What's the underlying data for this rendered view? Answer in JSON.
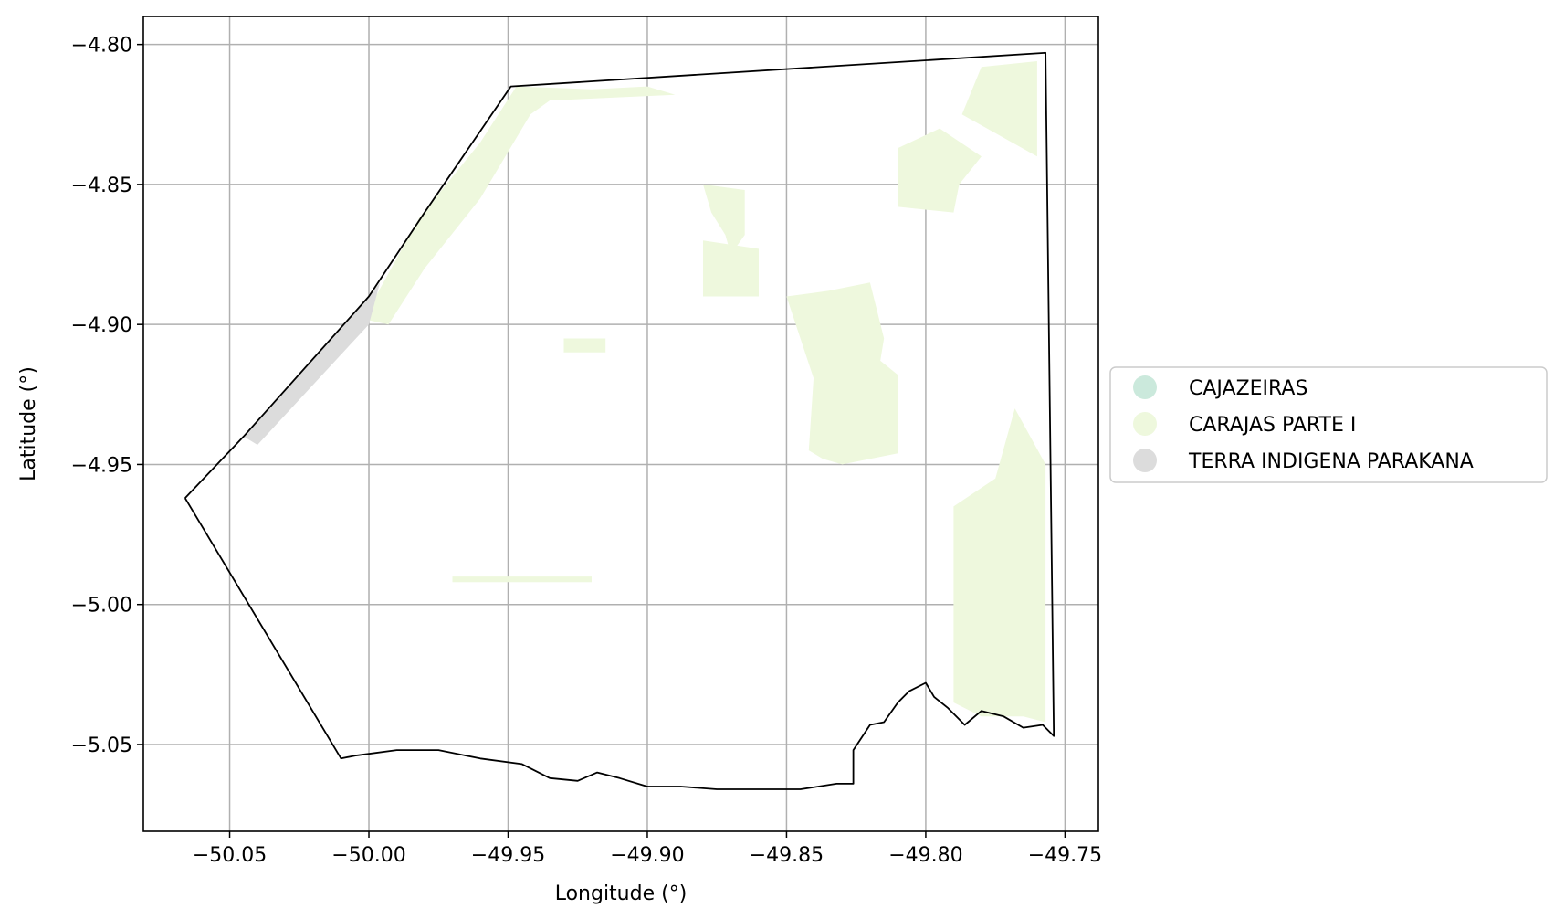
{
  "chart_data": {
    "type": "map",
    "xlabel": "Longitude (°)",
    "ylabel": "Latitude (°)",
    "xlim": [
      -50.081,
      -49.738
    ],
    "ylim": [
      -5.081,
      -4.79
    ],
    "xticks": [
      -50.05,
      -50.0,
      -49.95,
      -49.9,
      -49.85,
      -49.8,
      -49.75
    ],
    "xtick_labels": [
      "−50.05",
      "−50.00",
      "−49.95",
      "−49.90",
      "−49.85",
      "−49.80",
      "−49.75"
    ],
    "yticks": [
      -4.8,
      -4.85,
      -4.9,
      -4.95,
      -5.0,
      -5.05
    ],
    "ytick_labels": [
      "−4.80",
      "−4.85",
      "−4.90",
      "−4.95",
      "−5.00",
      "−5.05"
    ],
    "grid": true,
    "legend_position": "right",
    "legend": [
      {
        "name": "CAJAZEIRAS",
        "color": "#cbe9dc"
      },
      {
        "name": "CARAJAS PARTE I",
        "color": "#eef8dd"
      },
      {
        "name": "TERRA INDIGENA PARAKANA",
        "color": "#dcdcdc"
      }
    ],
    "boundary": [
      [
        -50.066,
        -4.962
      ],
      [
        -50.045,
        -4.94
      ],
      [
        -50.0,
        -4.89
      ],
      [
        -49.98,
        -4.86
      ],
      [
        -49.949,
        -4.815
      ],
      [
        -49.757,
        -4.803
      ],
      [
        -49.754,
        -5.047
      ],
      [
        -49.758,
        -5.043
      ],
      [
        -49.765,
        -5.044
      ],
      [
        -49.772,
        -5.04
      ],
      [
        -49.78,
        -5.038
      ],
      [
        -49.786,
        -5.043
      ],
      [
        -49.792,
        -5.037
      ],
      [
        -49.797,
        -5.033
      ],
      [
        -49.8,
        -5.028
      ],
      [
        -49.806,
        -5.031
      ],
      [
        -49.81,
        -5.035
      ],
      [
        -49.815,
        -5.042
      ],
      [
        -49.82,
        -5.043
      ],
      [
        -49.826,
        -5.052
      ],
      [
        -49.826,
        -5.064
      ],
      [
        -49.832,
        -5.064
      ],
      [
        -49.845,
        -5.066
      ],
      [
        -49.86,
        -5.066
      ],
      [
        -49.875,
        -5.066
      ],
      [
        -49.888,
        -5.065
      ],
      [
        -49.9,
        -5.065
      ],
      [
        -49.91,
        -5.062
      ],
      [
        -49.918,
        -5.06
      ],
      [
        -49.925,
        -5.063
      ],
      [
        -49.935,
        -5.062
      ],
      [
        -49.945,
        -5.057
      ],
      [
        -49.96,
        -5.055
      ],
      [
        -49.975,
        -5.052
      ],
      [
        -49.99,
        -5.052
      ],
      [
        -50.005,
        -5.054
      ],
      [
        -50.01,
        -5.055
      ],
      [
        -50.066,
        -4.962
      ]
    ],
    "regions": [
      {
        "name": "CARAJAS PARTE I",
        "polygons": [
          [
            [
              -49.947,
              -4.815
            ],
            [
              -49.92,
              -4.816
            ],
            [
              -49.9,
              -4.815
            ],
            [
              -49.89,
              -4.818
            ],
            [
              -49.935,
              -4.82
            ],
            [
              -49.942,
              -4.825
            ],
            [
              -49.96,
              -4.855
            ],
            [
              -49.98,
              -4.88
            ],
            [
              -49.993,
              -4.9
            ],
            [
              -50.002,
              -4.898
            ],
            [
              -49.982,
              -4.862
            ],
            [
              -49.96,
              -4.835
            ]
          ],
          [
            [
              -49.76,
              -4.806
            ],
            [
              -49.78,
              -4.808
            ],
            [
              -49.787,
              -4.825
            ],
            [
              -49.76,
              -4.84
            ]
          ],
          [
            [
              -49.795,
              -4.83
            ],
            [
              -49.78,
              -4.84
            ],
            [
              -49.788,
              -4.85
            ],
            [
              -49.79,
              -4.86
            ],
            [
              -49.81,
              -4.858
            ],
            [
              -49.81,
              -4.837
            ]
          ],
          [
            [
              -49.88,
              -4.85
            ],
            [
              -49.865,
              -4.852
            ],
            [
              -49.865,
              -4.868
            ],
            [
              -49.87,
              -4.875
            ],
            [
              -49.872,
              -4.868
            ],
            [
              -49.877,
              -4.86
            ]
          ],
          [
            [
              -49.88,
              -4.87
            ],
            [
              -49.86,
              -4.873
            ],
            [
              -49.86,
              -4.89
            ],
            [
              -49.88,
              -4.89
            ]
          ],
          [
            [
              -49.85,
              -4.89
            ],
            [
              -49.84,
              -4.92
            ],
            [
              -49.82,
              -4.935
            ],
            [
              -49.815,
              -4.905
            ],
            [
              -49.82,
              -4.885
            ],
            [
              -49.835,
              -4.888
            ]
          ],
          [
            [
              -49.84,
              -4.915
            ],
            [
              -49.842,
              -4.945
            ],
            [
              -49.837,
              -4.948
            ],
            [
              -49.83,
              -4.95
            ],
            [
              -49.81,
              -4.946
            ],
            [
              -49.81,
              -4.918
            ],
            [
              -49.82,
              -4.91
            ]
          ],
          [
            [
              -49.775,
              -4.955
            ],
            [
              -49.79,
              -4.965
            ],
            [
              -49.79,
              -5.035
            ],
            [
              -49.78,
              -5.04
            ],
            [
              -49.765,
              -5.04
            ],
            [
              -49.757,
              -5.042
            ],
            [
              -49.757,
              -4.95
            ],
            [
              -49.768,
              -4.93
            ]
          ],
          [
            [
              -49.93,
              -4.905
            ],
            [
              -49.915,
              -4.905
            ],
            [
              -49.915,
              -4.91
            ],
            [
              -49.93,
              -4.91
            ]
          ],
          [
            [
              -49.97,
              -4.99
            ],
            [
              -49.92,
              -4.99
            ],
            [
              -49.92,
              -4.992
            ],
            [
              -49.97,
              -4.992
            ]
          ]
        ]
      },
      {
        "name": "TERRA INDIGENA PARAKANA",
        "polygons": [
          [
            [
              -50.045,
              -4.94
            ],
            [
              -50.0,
              -4.89
            ],
            [
              -49.996,
              -4.885
            ],
            [
              -50.0,
              -4.9
            ],
            [
              -50.04,
              -4.943
            ]
          ]
        ]
      }
    ]
  }
}
